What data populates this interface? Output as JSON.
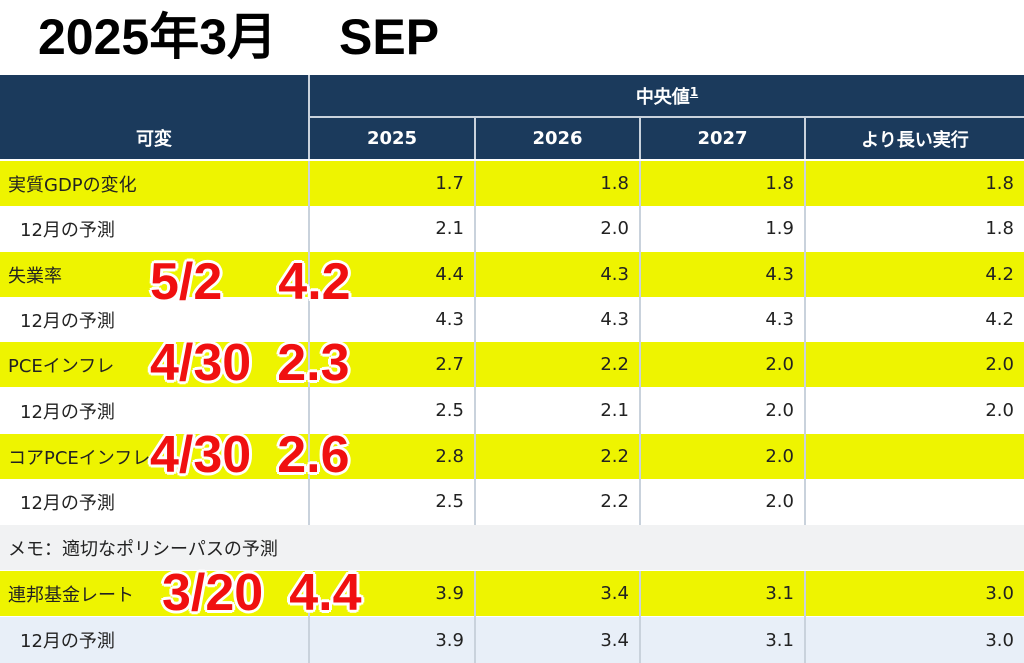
{
  "page_title": {
    "left": "2025年3月",
    "right": "SEP"
  },
  "header": {
    "variable": "可変",
    "median": "中央値",
    "median_note": "1",
    "years": [
      "2025",
      "2026",
      "2027",
      "より長い実行"
    ]
  },
  "rows": [
    {
      "label": "実質GDPの変化",
      "values": [
        "1.7",
        "1.8",
        "1.8",
        "1.8"
      ]
    },
    {
      "label": "12月の予測",
      "values": [
        "2.1",
        "2.0",
        "1.9",
        "1.8"
      ]
    },
    {
      "label": "失業率",
      "values": [
        "4.4",
        "4.3",
        "4.3",
        "4.2"
      ]
    },
    {
      "label": "12月の予測",
      "values": [
        "4.3",
        "4.3",
        "4.3",
        "4.2"
      ]
    },
    {
      "label": "PCEインフレ",
      "values": [
        "2.7",
        "2.2",
        "2.0",
        "2.0"
      ]
    },
    {
      "label": "12月の予測",
      "values": [
        "2.5",
        "2.1",
        "2.0",
        "2.0"
      ]
    },
    {
      "label": "コアPCEインフレ",
      "values": [
        "2.8",
        "2.2",
        "2.0",
        ""
      ]
    },
    {
      "label": "12月の予測",
      "values": [
        "2.5",
        "2.2",
        "2.0",
        ""
      ]
    },
    {
      "label": "メモ：適切なポリシーパスの予測"
    },
    {
      "label": "連邦基金レート",
      "values": [
        "3.9",
        "3.4",
        "3.1",
        "3.0"
      ]
    },
    {
      "label": "12月の予測",
      "values": [
        "3.9",
        "3.4",
        "3.1",
        "3.0"
      ]
    }
  ],
  "annotations": [
    {
      "date": "5/2",
      "value": "4.2"
    },
    {
      "date": "4/30",
      "value": "2.3"
    },
    {
      "date": "4/30",
      "value": "2.6"
    },
    {
      "date": "3/20",
      "value": "4.4"
    }
  ],
  "colors": {
    "header_bg": "#1b3a5c",
    "highlight": "#eef400",
    "annotation": "#f01010",
    "grid": "#c9d2dc"
  }
}
